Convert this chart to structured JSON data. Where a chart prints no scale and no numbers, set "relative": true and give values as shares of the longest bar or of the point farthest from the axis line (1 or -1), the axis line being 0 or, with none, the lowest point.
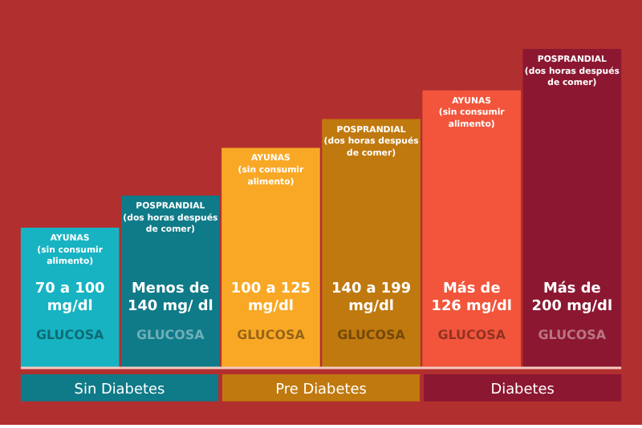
{
  "chart_data": {
    "type": "bar",
    "relative": true,
    "categories": [
      "AYUNAS\n(sin consumir\nalimento)",
      "POSPRANDIAL\n(dos horas después\nde comer)",
      "AYUNAS\n(sin consumir\nalimento)",
      "POSPRANDIAL\n(dos horas después\nde comer)",
      "AYUNAS\n(sin consumir\nalimento)",
      "POSPRANDIAL\n(dos horas después\nde comer)"
    ],
    "values": [
      0.44,
      0.54,
      0.69,
      0.78,
      0.87,
      1
    ],
    "colors": [
      "#17b3c2",
      "#0f7a88",
      "#f9a826",
      "#c0790e",
      "#f2553b",
      "#8c1731"
    ],
    "annotations": [
      "70 a 100\nmg/dl",
      "Menos de\n140 mg/ dl",
      "100 a 125\nmg/dl",
      "140 a 199\nmg/dl",
      "Más de\n126 mg/dl",
      "Más de\n200 mg/dl",
      "GLUCOSA",
      "GLUCOSA",
      "GLUCOSA",
      "GLUCOSA",
      "GLUCOSA",
      "GLUCOSA",
      "Sin Diabetes",
      "Pre Diabetes",
      "Diabetes"
    ]
  }
}
